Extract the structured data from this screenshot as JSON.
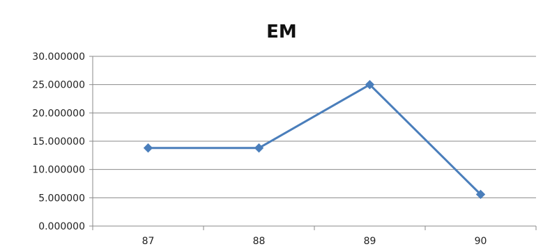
{
  "chart_data": {
    "type": "line",
    "title": "EM",
    "categories": [
      "87",
      "88",
      "89",
      "90"
    ],
    "series": [
      {
        "values": [
          13.8,
          13.8,
          25.0,
          5.6
        ],
        "color": "#4a7ebb",
        "marker": "diamond"
      }
    ],
    "ylim": [
      0,
      30
    ],
    "yticks": [
      "0.000000",
      "5.000000",
      "10.000000",
      "15.000000",
      "20.000000",
      "25.000000",
      "30.000000"
    ],
    "grid": true,
    "legend": "none"
  }
}
